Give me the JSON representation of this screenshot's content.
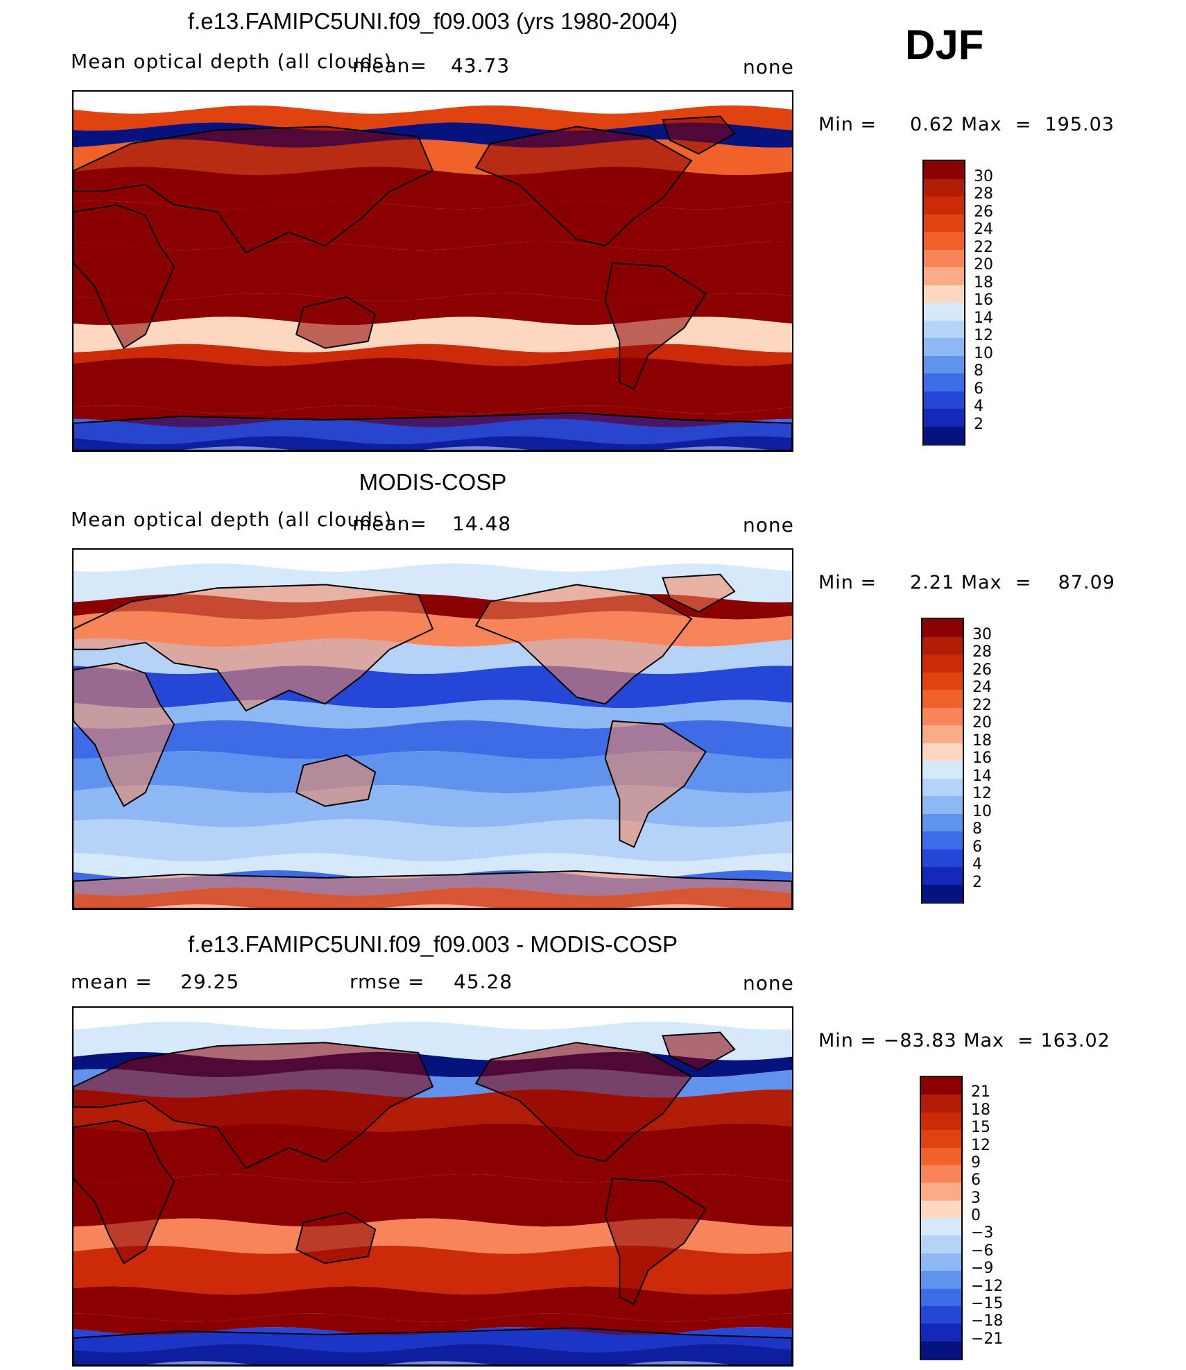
{
  "season": "DJF",
  "panels": [
    {
      "title": "f.e13.FAMIPC5UNI.f09_f09.003 (yrs 1980-2004)",
      "left_label": "Mean optical depth (all clouds)",
      "stat1_label": "mean=",
      "stat1_value": "43.73",
      "right_label": "none",
      "minmax": "Min =     0.62 Max  =  195.03",
      "colorbar": {
        "labels": [
          "30",
          "28",
          "26",
          "24",
          "22",
          "20",
          "18",
          "16",
          "14",
          "12",
          "10",
          "8",
          "6",
          "4",
          "2"
        ],
        "colors": [
          "#8b0000",
          "#b01c05",
          "#cc2a08",
          "#e0430f",
          "#f0622a",
          "#f7855a",
          "#fbab88",
          "#fdd8c0",
          "#d6e8fb",
          "#b5d3f8",
          "#8db8f3",
          "#5f93ec",
          "#3e6ce6",
          "#2447d8",
          "#1428b8",
          "#06127e"
        ]
      },
      "field": "model"
    },
    {
      "title": "MODIS-COSP",
      "left_label": "Mean optical depth (all clouds)",
      "stat1_label": "mean=",
      "stat1_value": "14.48",
      "right_label": "none",
      "minmax": "Min =     2.21 Max  =    87.09",
      "colorbar": {
        "labels": [
          "30",
          "28",
          "26",
          "24",
          "22",
          "20",
          "18",
          "16",
          "14",
          "12",
          "10",
          "8",
          "6",
          "4",
          "2"
        ],
        "colors": [
          "#8b0000",
          "#b01c05",
          "#cc2a08",
          "#e0430f",
          "#f0622a",
          "#f7855a",
          "#fbab88",
          "#fdd8c0",
          "#d6e8fb",
          "#b5d3f8",
          "#8db8f3",
          "#5f93ec",
          "#3e6ce6",
          "#2447d8",
          "#1428b8",
          "#06127e"
        ]
      },
      "field": "obs"
    },
    {
      "title": "f.e13.FAMIPC5UNI.f09_f09.003 - MODIS-COSP",
      "left_label": "mean =",
      "left_value": "29.25",
      "stat1_label": "rmse =",
      "stat1_value": "45.28",
      "right_label": "none",
      "minmax": "Min = −83.83 Max  = 163.02",
      "colorbar": {
        "labels": [
          "21",
          "18",
          "15",
          "12",
          "9",
          "6",
          "3",
          "0",
          "−3",
          "−6",
          "−9",
          "−12",
          "−15",
          "−18",
          "−21"
        ],
        "colors": [
          "#8b0000",
          "#b01c05",
          "#cc2a08",
          "#e0430f",
          "#f0622a",
          "#f7855a",
          "#fbab88",
          "#fdd8c0",
          "#d6e8fb",
          "#b5d3f8",
          "#8db8f3",
          "#5f93ec",
          "#3e6ce6",
          "#2447d8",
          "#1428b8",
          "#06127e"
        ]
      },
      "field": "diff"
    }
  ]
}
